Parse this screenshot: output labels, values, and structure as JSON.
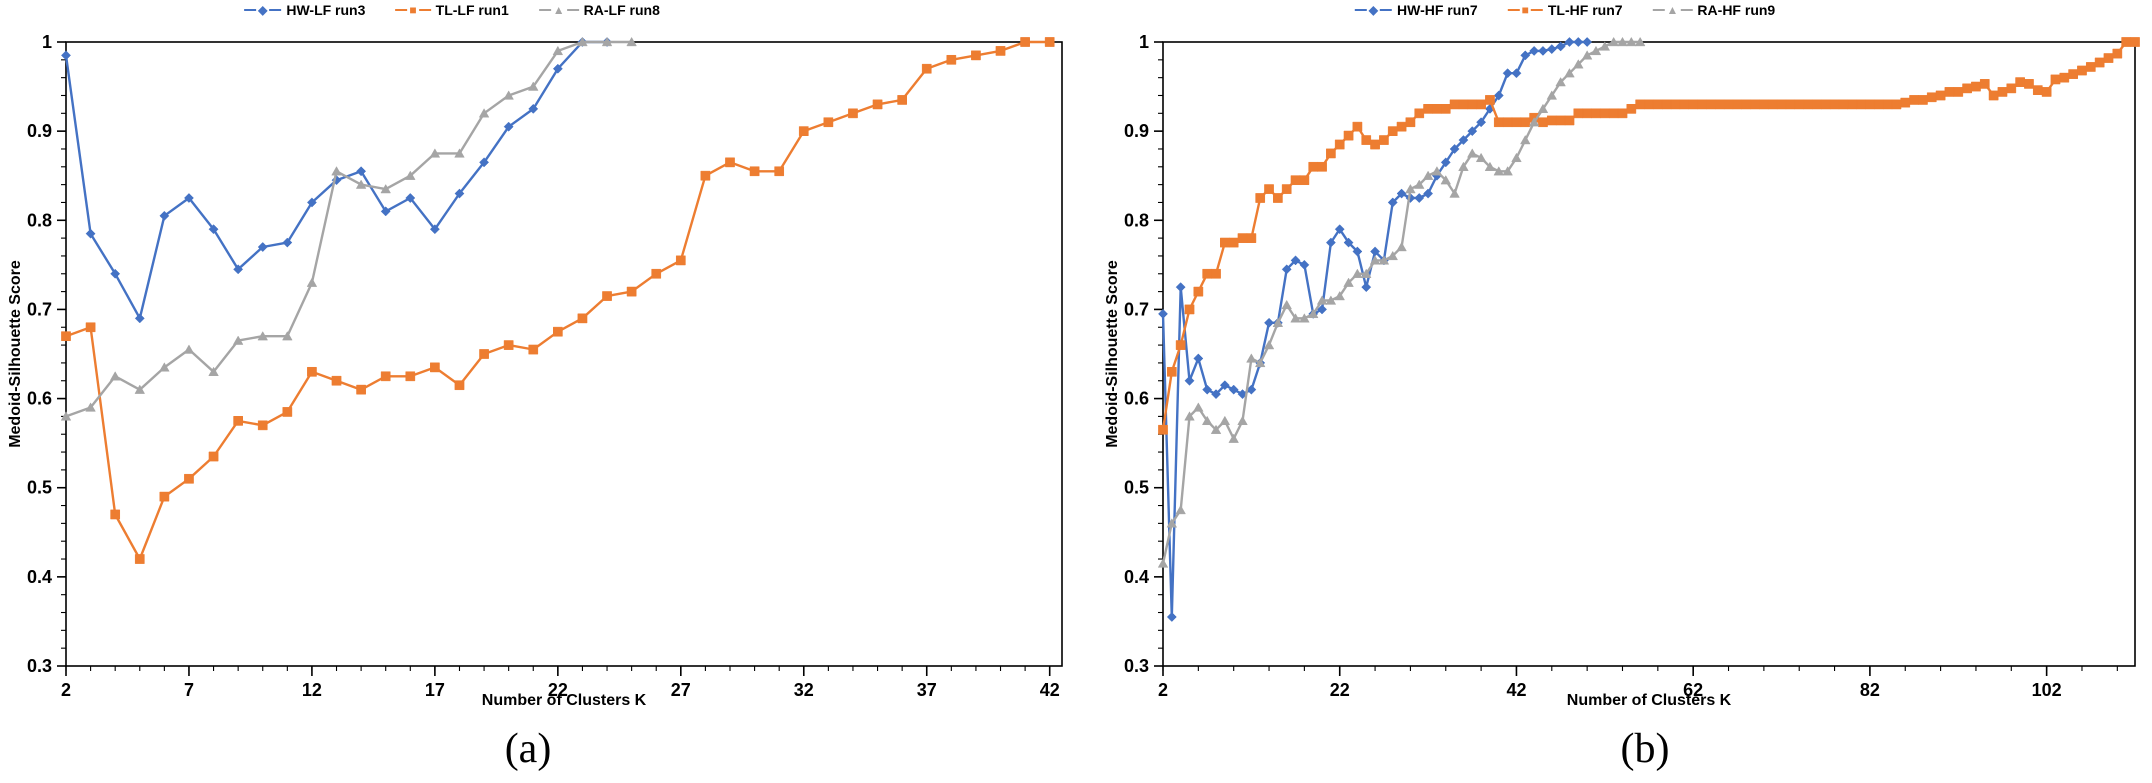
{
  "figure": {
    "captions": {
      "a": "(a)",
      "b": "(b)"
    },
    "colors": {
      "hw": "#4472C4",
      "tl": "#ED7D31",
      "ra": "#A5A5A5",
      "axis": "#000000"
    }
  },
  "chart_data": [
    {
      "type": "line",
      "panel": "a",
      "title": "",
      "xlabel": "Number of Clusters K",
      "ylabel": "Medoid-Silhouette Score",
      "xlim": [
        2,
        42.5
      ],
      "ylim": [
        0.3,
        1.0
      ],
      "x_major_ticks": [
        2,
        7,
        12,
        17,
        22,
        27,
        32,
        37,
        42
      ],
      "x_minor_step": 1,
      "y_major_ticks": [
        1,
        0.9,
        0.8,
        0.7,
        0.6,
        0.5,
        0.4,
        0.3
      ],
      "y_minor_step": 0.02,
      "grid": false,
      "legend_position": "top-center",
      "series": [
        {
          "name": "HW-LF run3",
          "marker": "diamond",
          "color": "#4472C4",
          "x_start": 2,
          "x_step": 1,
          "values": [
            0.985,
            0.785,
            0.74,
            0.69,
            0.805,
            0.825,
            0.79,
            0.745,
            0.77,
            0.775,
            0.82,
            0.845,
            0.855,
            0.81,
            0.825,
            0.79,
            0.83,
            0.865,
            0.905,
            0.925,
            0.97,
            1.0,
            1.0
          ]
        },
        {
          "name": "TL-LF run1",
          "marker": "square",
          "color": "#ED7D31",
          "x_start": 2,
          "x_step": 1,
          "values": [
            0.67,
            0.68,
            0.47,
            0.42,
            0.49,
            0.51,
            0.535,
            0.575,
            0.57,
            0.585,
            0.63,
            0.62,
            0.61,
            0.625,
            0.625,
            0.635,
            0.615,
            0.65,
            0.66,
            0.655,
            0.675,
            0.69,
            0.715,
            0.72,
            0.74,
            0.755,
            0.85,
            0.865,
            0.855,
            0.855,
            0.9,
            0.91,
            0.92,
            0.93,
            0.935,
            0.97,
            0.98,
            0.985,
            0.99,
            1.0,
            1.0
          ]
        },
        {
          "name": "RA-LF run8",
          "marker": "triangle",
          "color": "#A5A5A5",
          "x_start": 2,
          "x_step": 1,
          "values": [
            0.58,
            0.59,
            0.625,
            0.61,
            0.635,
            0.655,
            0.63,
            0.665,
            0.67,
            0.67,
            0.73,
            0.855,
            0.84,
            0.835,
            0.85,
            0.875,
            0.875,
            0.92,
            0.94,
            0.95,
            0.99,
            1.0,
            1.0,
            1.0
          ]
        }
      ]
    },
    {
      "type": "line",
      "panel": "b",
      "title": "",
      "xlabel": "Number of Clusters K",
      "ylabel": "Medoid-Silhouette Score",
      "xlim": [
        2,
        112
      ],
      "ylim": [
        0.3,
        1.0
      ],
      "x_major_ticks": [
        2,
        22,
        42,
        62,
        82,
        102
      ],
      "x_minor_step": 4,
      "y_major_ticks": [
        1,
        0.9,
        0.8,
        0.7,
        0.6,
        0.5,
        0.4,
        0.3
      ],
      "y_minor_step": 0.02,
      "grid": false,
      "legend_position": "top-center",
      "series": [
        {
          "name": "HW-HF run7",
          "marker": "diamond",
          "color": "#4472C4",
          "x_start": 2,
          "x_step": 1,
          "values": [
            0.695,
            0.355,
            0.725,
            0.62,
            0.645,
            0.61,
            0.605,
            0.615,
            0.61,
            0.605,
            0.61,
            0.64,
            0.685,
            0.685,
            0.745,
            0.755,
            0.75,
            0.695,
            0.7,
            0.775,
            0.79,
            0.775,
            0.765,
            0.725,
            0.765,
            0.755,
            0.82,
            0.83,
            0.825,
            0.825,
            0.83,
            0.85,
            0.865,
            0.88,
            0.89,
            0.9,
            0.91,
            0.925,
            0.94,
            0.965,
            0.965,
            0.985,
            0.99,
            0.99,
            0.992,
            0.995,
            1.0,
            1.0,
            1.0
          ]
        },
        {
          "name": "TL-HF run7",
          "marker": "square",
          "color": "#ED7D31",
          "x_start": 2,
          "x_step": 1,
          "values": [
            0.565,
            0.63,
            0.66,
            0.7,
            0.72,
            0.74,
            0.74,
            0.775,
            0.775,
            0.78,
            0.78,
            0.825,
            0.835,
            0.825,
            0.835,
            0.845,
            0.845,
            0.86,
            0.86,
            0.875,
            0.885,
            0.895,
            0.905,
            0.89,
            0.885,
            0.89,
            0.9,
            0.905,
            0.91,
            0.92,
            0.925,
            0.925,
            0.925,
            0.93,
            0.93,
            0.93,
            0.93,
            0.935,
            0.91,
            0.91,
            0.91,
            0.91,
            0.915,
            0.91,
            0.912,
            0.912,
            0.912,
            0.92,
            0.92,
            0.92,
            0.92,
            0.92,
            0.92,
            0.925,
            0.93,
            0.93,
            0.93,
            0.93,
            0.93,
            0.93,
            0.93,
            0.93,
            0.93,
            0.93,
            0.93,
            0.93,
            0.93,
            0.93,
            0.93,
            0.93,
            0.93,
            0.93,
            0.93,
            0.93,
            0.93,
            0.93,
            0.93,
            0.93,
            0.93,
            0.93,
            0.93,
            0.93,
            0.93,
            0.93,
            0.932,
            0.935,
            0.935,
            0.938,
            0.94,
            0.944,
            0.944,
            0.948,
            0.95,
            0.953,
            0.94,
            0.944,
            0.948,
            0.955,
            0.953,
            0.946,
            0.944,
            0.958,
            0.96,
            0.964,
            0.968,
            0.972,
            0.977,
            0.982,
            0.987,
            1.0,
            1.0
          ]
        },
        {
          "name": "RA-HF run9",
          "marker": "triangle",
          "color": "#A5A5A5",
          "x_start": 2,
          "x_step": 1,
          "values": [
            0.415,
            0.46,
            0.475,
            0.58,
            0.59,
            0.575,
            0.565,
            0.575,
            0.555,
            0.575,
            0.645,
            0.64,
            0.66,
            0.685,
            0.705,
            0.69,
            0.69,
            0.695,
            0.71,
            0.71,
            0.715,
            0.73,
            0.74,
            0.74,
            0.755,
            0.755,
            0.76,
            0.77,
            0.835,
            0.84,
            0.85,
            0.855,
            0.845,
            0.83,
            0.86,
            0.875,
            0.87,
            0.86,
            0.855,
            0.855,
            0.87,
            0.89,
            0.91,
            0.925,
            0.94,
            0.955,
            0.965,
            0.975,
            0.985,
            0.99,
            0.995,
            1.0,
            1.0,
            1.0,
            1.0
          ]
        }
      ]
    }
  ]
}
